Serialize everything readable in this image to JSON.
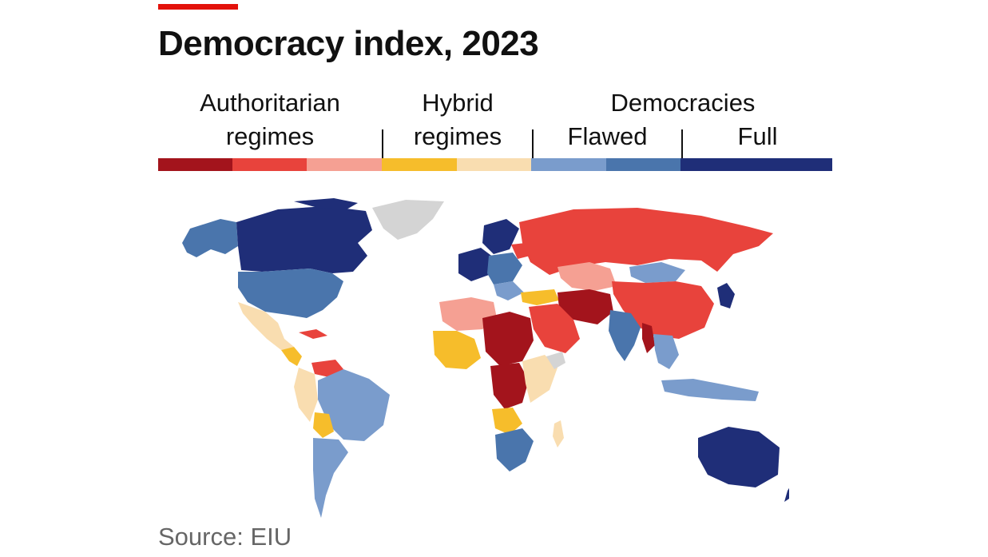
{
  "title": "Democracy index, 2023",
  "source": "Source: EIU",
  "legend": {
    "authoritarian": {
      "line1": "Authoritarian",
      "line2": "regimes"
    },
    "hybrid": {
      "line1": "Hybrid",
      "line2": "regimes"
    },
    "democracies": {
      "label": "Democracies",
      "flawed": "Flawed",
      "full": "Full"
    },
    "swatches": [
      "#a3141c",
      "#e8433c",
      "#f5a093",
      "#f6bd2b",
      "#f9ddb0",
      "#7a9ccc",
      "#4a75ac",
      "#1f2e78"
    ]
  },
  "colors": {
    "accent": "#e3120b",
    "no_data": "#d4d4d4"
  }
}
